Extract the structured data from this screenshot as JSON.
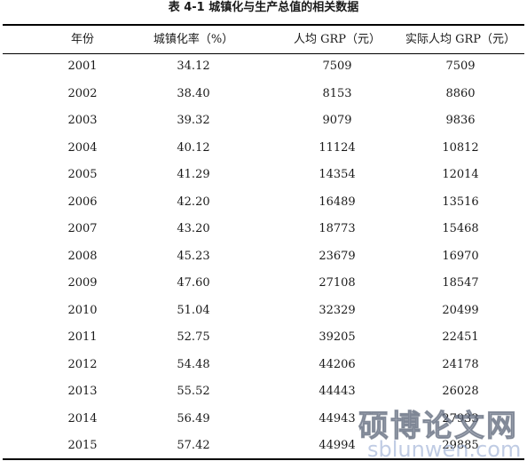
{
  "caption": "表 4-1    城镇化与生产总值的相关数据",
  "table": {
    "headers": {
      "year": "年份",
      "rate": "城镇化率（%）",
      "grp": "人均 GRP（元）",
      "real_grp": "实际人均 GRP（元）"
    },
    "rows": [
      {
        "year": "2001",
        "rate": "34.12",
        "grp": "7509",
        "real_grp": "7509"
      },
      {
        "year": "2002",
        "rate": "38.40",
        "grp": "8153",
        "real_grp": "8860"
      },
      {
        "year": "2003",
        "rate": "39.32",
        "grp": "9079",
        "real_grp": "9836"
      },
      {
        "year": "2004",
        "rate": "40.12",
        "grp": "11124",
        "real_grp": "10812"
      },
      {
        "year": "2005",
        "rate": "41.29",
        "grp": "14354",
        "real_grp": "12014"
      },
      {
        "year": "2006",
        "rate": "42.20",
        "grp": "16489",
        "real_grp": "13516"
      },
      {
        "year": "2007",
        "rate": "43.20",
        "grp": "18773",
        "real_grp": "15468"
      },
      {
        "year": "2008",
        "rate": "45.23",
        "grp": "23679",
        "real_grp": "16970"
      },
      {
        "year": "2009",
        "rate": "47.60",
        "grp": "27108",
        "real_grp": "18547"
      },
      {
        "year": "2010",
        "rate": "51.04",
        "grp": "32329",
        "real_grp": "20499"
      },
      {
        "year": "2011",
        "rate": "52.75",
        "grp": "39205",
        "real_grp": "22451"
      },
      {
        "year": "2012",
        "rate": "54.48",
        "grp": "44206",
        "real_grp": "24178"
      },
      {
        "year": "2013",
        "rate": "55.52",
        "grp": "44443",
        "real_grp": "26028"
      },
      {
        "year": "2014",
        "rate": "56.49",
        "grp": "44943",
        "real_grp": "27933"
      },
      {
        "year": "2015",
        "rate": "57.42",
        "grp": "44994",
        "real_grp": "29885"
      }
    ]
  },
  "watermark": {
    "title": "硕博论文网",
    "url": "sblunwen.com"
  }
}
